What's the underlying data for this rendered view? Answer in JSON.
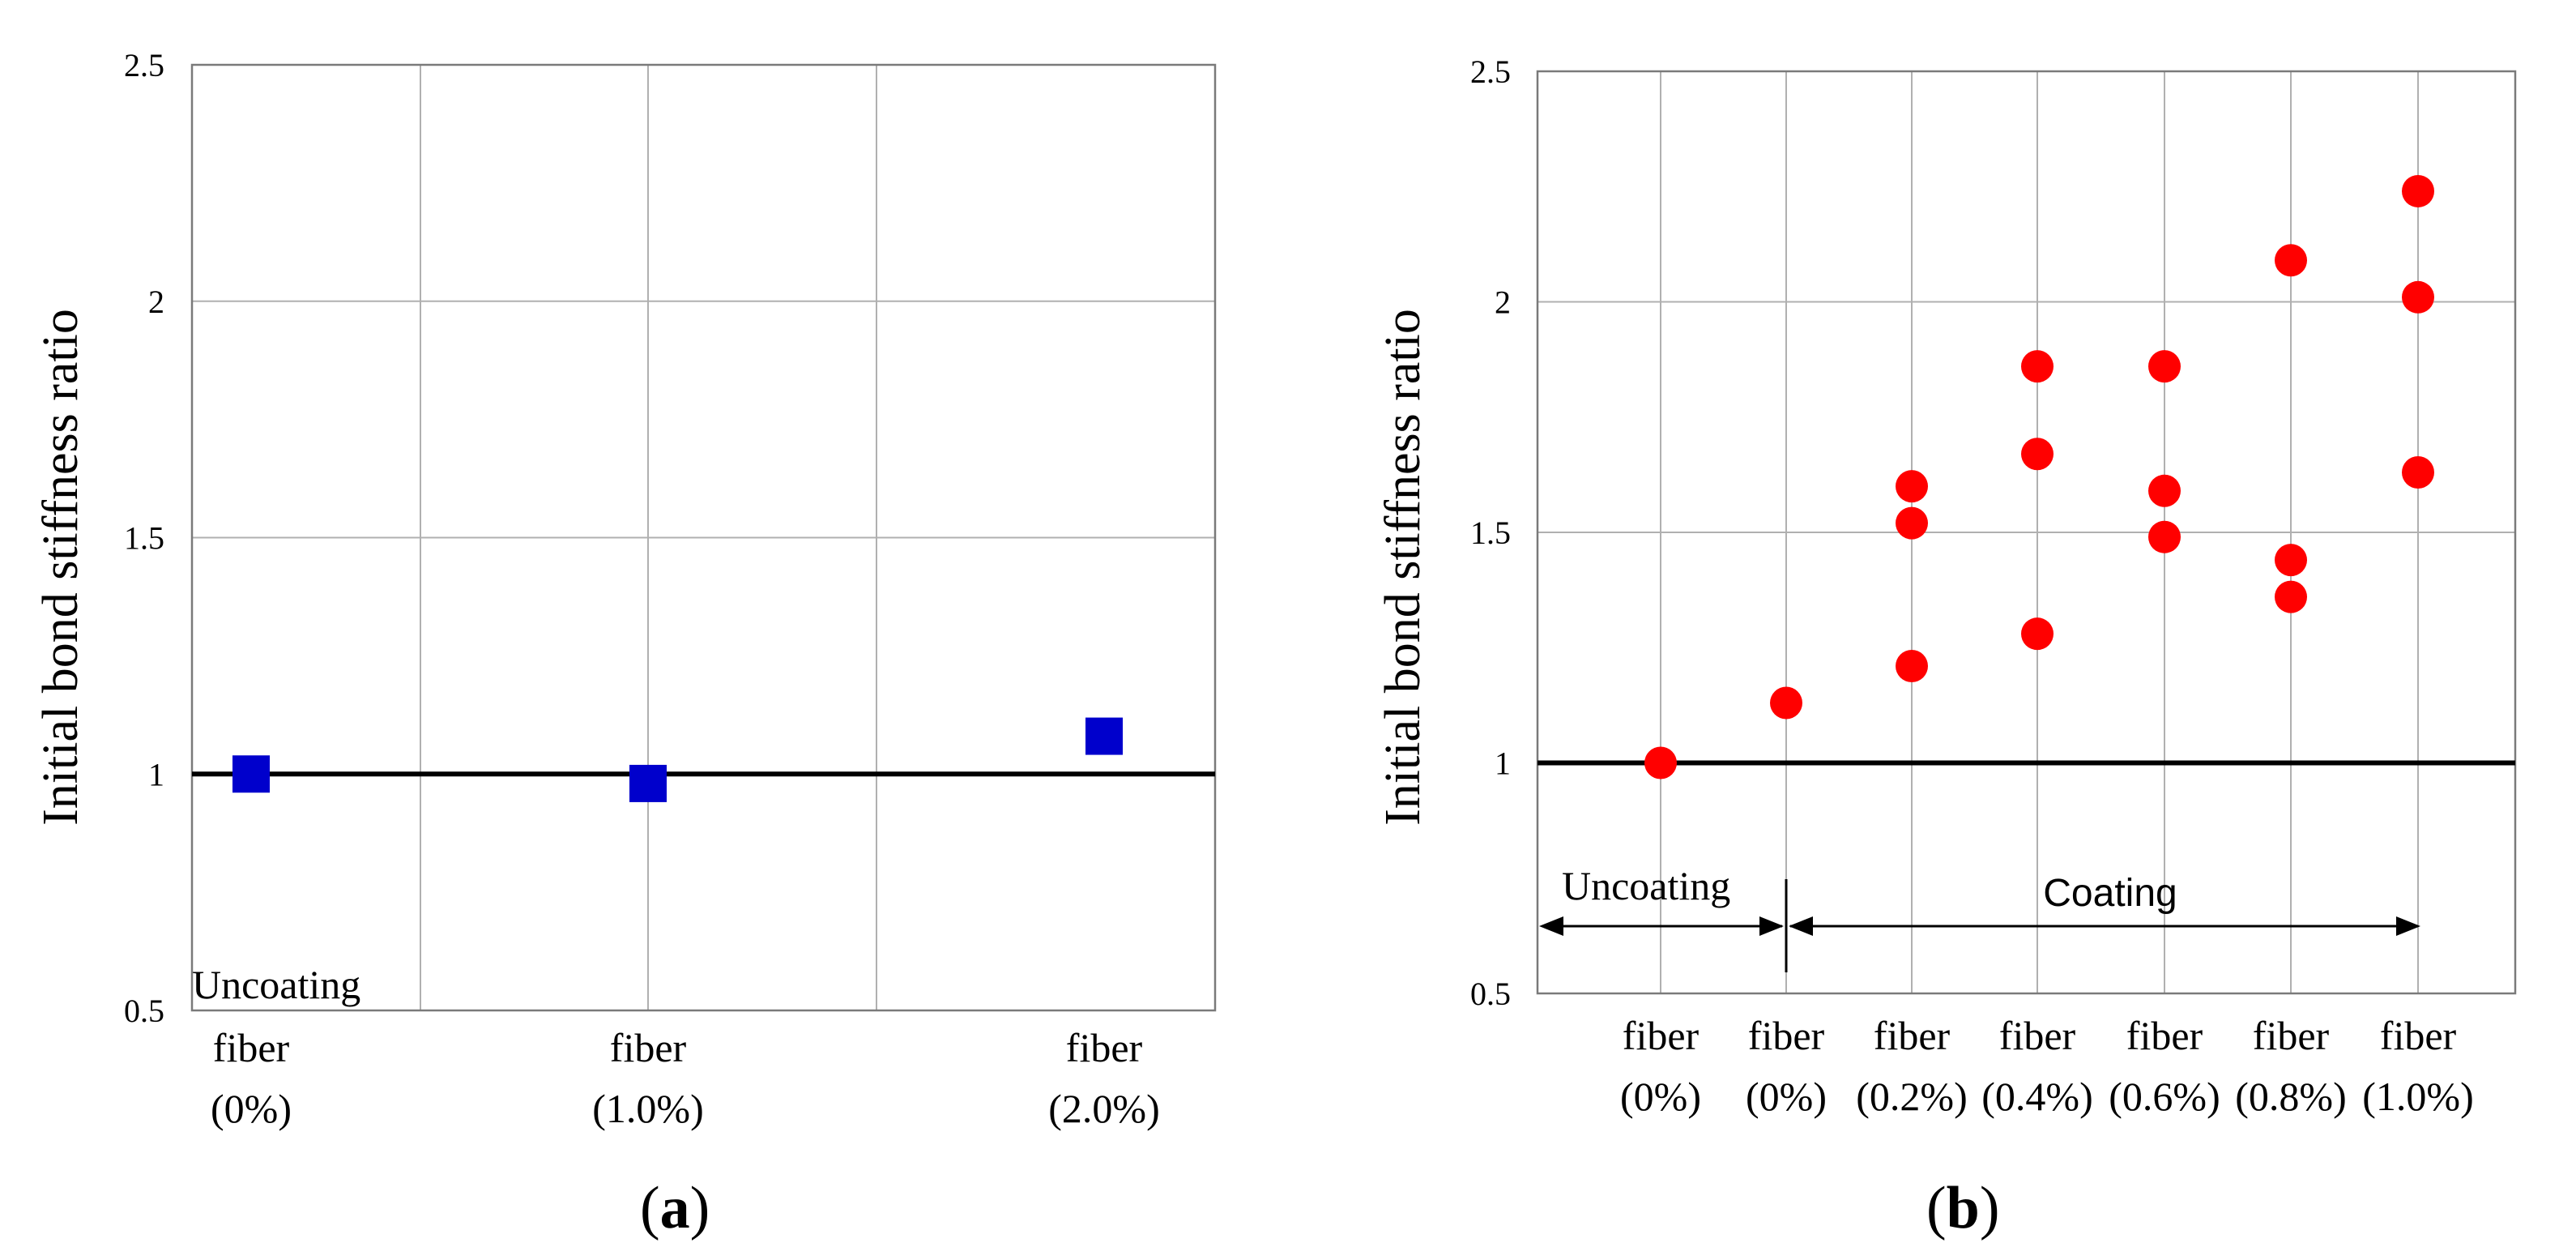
{
  "chart_data": [
    {
      "type": "scatter",
      "panel_label": "a",
      "ylabel": "Initial bond stiffness ratio",
      "ylim": [
        0.5,
        2.5
      ],
      "yticks": [
        "0.5",
        "1",
        "1.5",
        "2",
        "2.5"
      ],
      "categories": [
        {
          "line1": "fiber",
          "line2": "(0%)"
        },
        {
          "line1": "fiber",
          "line2": "(1.0%)"
        },
        {
          "line1": "fiber",
          "line2": "(2.0%)"
        }
      ],
      "reference_line": 1.0,
      "marker": "square",
      "marker_color": "#0000cc",
      "points": [
        {
          "category": 0,
          "y": 1.0
        },
        {
          "category": 1,
          "y": 0.98
        },
        {
          "category": 2,
          "y": 1.08
        }
      ],
      "annotations": [
        "Uncoating"
      ]
    },
    {
      "type": "scatter",
      "panel_label": "b",
      "ylabel": "Initial bond stiffness ratio",
      "ylim": [
        0.5,
        2.5
      ],
      "yticks": [
        "0.5",
        "1",
        "1.5",
        "2",
        "2.5"
      ],
      "categories": [
        {
          "line1": "fiber",
          "line2": "(0%)"
        },
        {
          "line1": "fiber",
          "line2": "(0%)"
        },
        {
          "line1": "fiber",
          "line2": "(0.2%)"
        },
        {
          "line1": "fiber",
          "line2": "(0.4%)"
        },
        {
          "line1": "fiber",
          "line2": "(0.6%)"
        },
        {
          "line1": "fiber",
          "line2": "(0.8%)"
        },
        {
          "line1": "fiber",
          "line2": "(1.0%)"
        }
      ],
      "reference_line": 1.0,
      "marker": "circle",
      "marker_color": "#ff0000",
      "points": [
        {
          "category": 0,
          "y": 1.0
        },
        {
          "category": 1,
          "y": 1.13
        },
        {
          "category": 2,
          "y": 1.6
        },
        {
          "category": 2,
          "y": 1.52
        },
        {
          "category": 2,
          "y": 1.21
        },
        {
          "category": 3,
          "y": 1.86
        },
        {
          "category": 3,
          "y": 1.67
        },
        {
          "category": 3,
          "y": 1.28
        },
        {
          "category": 4,
          "y": 1.86
        },
        {
          "category": 4,
          "y": 1.59
        },
        {
          "category": 4,
          "y": 1.49
        },
        {
          "category": 5,
          "y": 2.09
        },
        {
          "category": 5,
          "y": 1.44
        },
        {
          "category": 5,
          "y": 1.36
        },
        {
          "category": 6,
          "y": 2.24
        },
        {
          "category": 6,
          "y": 2.01
        },
        {
          "category": 6,
          "y": 1.63
        }
      ],
      "annotations": [
        "Uncoating",
        "Coating"
      ]
    }
  ]
}
